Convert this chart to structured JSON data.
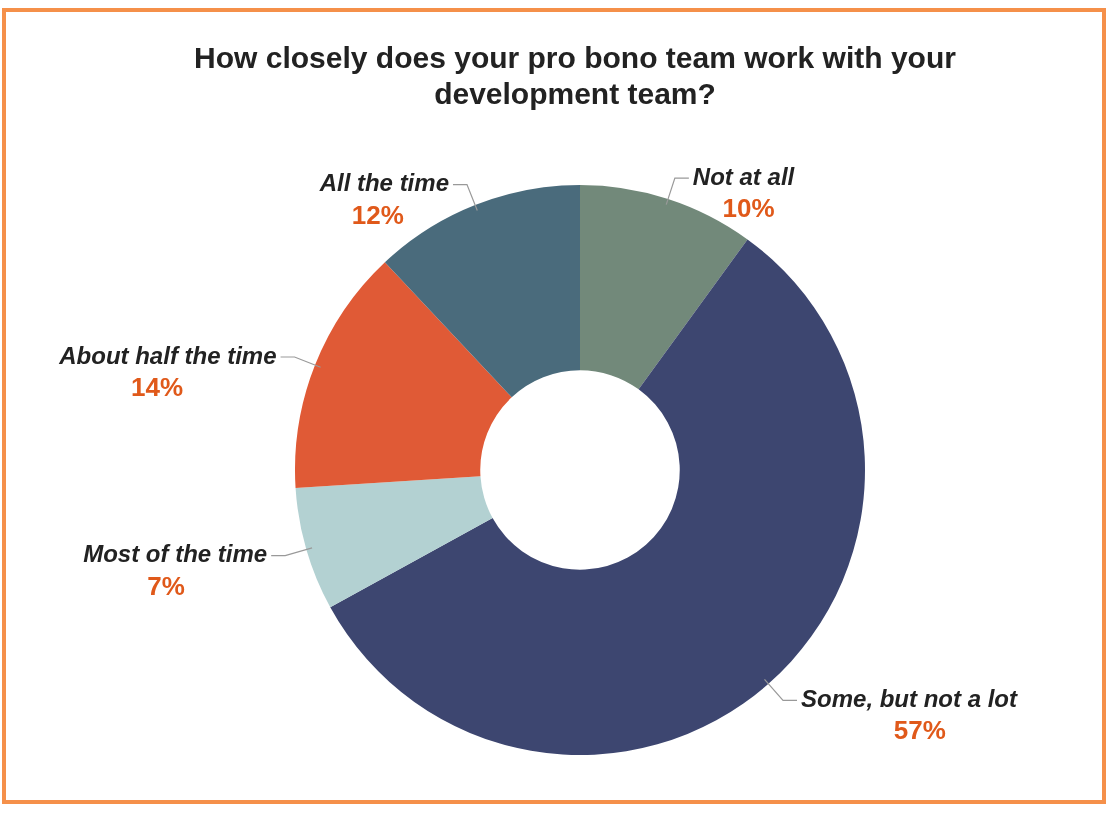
{
  "chart_data": {
    "type": "donut",
    "title": "How closely does your pro bono team work with your development team?",
    "categories": [
      "Not at all",
      "Some, but not a lot",
      "Most of the time",
      "About half the time",
      "All the time"
    ],
    "values": [
      10,
      57,
      7,
      14,
      12
    ],
    "colors": [
      "#72897a",
      "#3d4670",
      "#b3d1d2",
      "#e05a36",
      "#4a6b7c"
    ],
    "value_labels": [
      "10%",
      "57%",
      "7%",
      "14%",
      "12%"
    ],
    "legend": false
  }
}
